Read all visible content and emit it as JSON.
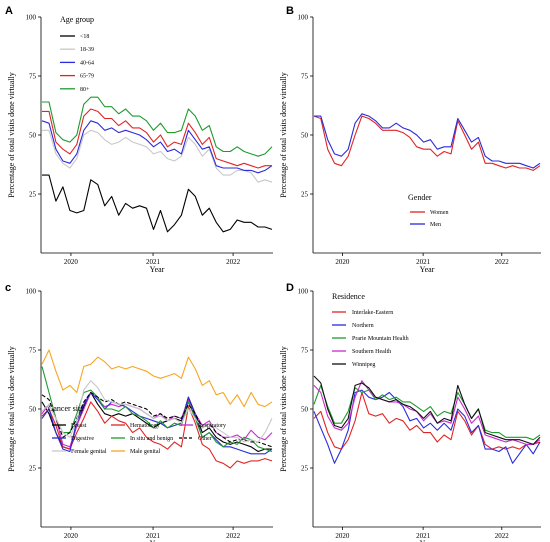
{
  "chart_data": [
    {
      "panel": "A",
      "type": "line",
      "xlabel": "Year",
      "ylabel": "Percentage of total visits done virtually",
      "xticks": [
        "2020",
        "2021",
        "2022"
      ],
      "ylim": [
        0,
        100
      ],
      "yticks": [
        25,
        50,
        75,
        100
      ],
      "legend_title": "Age group",
      "legend_position": "top-left",
      "series": [
        {
          "name": "<18",
          "color": "#000000",
          "values": [
            33,
            33,
            22,
            28,
            18,
            17,
            18,
            31,
            29,
            20,
            24,
            16,
            21,
            19,
            20,
            19,
            10,
            18,
            9,
            12,
            16,
            27,
            24,
            16,
            19,
            13,
            9,
            10,
            14,
            13,
            13,
            11,
            11,
            10
          ]
        },
        {
          "name": "18-39",
          "color": "#c8c8c8",
          "values": [
            52,
            52,
            42,
            38,
            36,
            40,
            50,
            52,
            51,
            48,
            46,
            47,
            49,
            47,
            46,
            45,
            42,
            43,
            40,
            39,
            41,
            49,
            46,
            41,
            44,
            36,
            33,
            33,
            35,
            35,
            34,
            30,
            31,
            30
          ]
        },
        {
          "name": "40-64",
          "color": "#2b2bdb",
          "values": [
            56,
            55,
            44,
            39,
            38,
            42,
            52,
            56,
            55,
            52,
            53,
            51,
            52,
            51,
            50,
            48,
            45,
            47,
            43,
            44,
            42,
            52,
            48,
            44,
            45,
            37,
            36,
            36,
            36,
            35,
            35,
            34,
            35,
            37
          ]
        },
        {
          "name": "65-79",
          "color": "#e02424",
          "values": [
            60,
            60,
            47,
            44,
            42,
            46,
            58,
            61,
            60,
            57,
            57,
            54,
            56,
            53,
            53,
            51,
            47,
            50,
            45,
            47,
            46,
            55,
            51,
            46,
            49,
            40,
            39,
            38,
            37,
            38,
            37,
            36,
            37,
            37
          ]
        },
        {
          "name": "80+",
          "color": "#1e9a2e",
          "values": [
            64,
            64,
            51,
            48,
            47,
            50,
            63,
            66,
            66,
            62,
            62,
            59,
            61,
            58,
            58,
            56,
            52,
            55,
            51,
            51,
            52,
            61,
            58,
            52,
            54,
            45,
            43,
            43,
            45,
            43,
            42,
            41,
            42,
            45
          ]
        }
      ]
    },
    {
      "panel": "B",
      "type": "line",
      "xlabel": "Year",
      "ylabel": "Percentage of total visits done virtually",
      "xticks": [
        "2020",
        "2021",
        "2022"
      ],
      "ylim": [
        0,
        100
      ],
      "yticks": [
        25,
        50,
        75,
        100
      ],
      "legend_title": "Gender",
      "legend_position": "bottom-right",
      "series": [
        {
          "name": "Women",
          "color": "#e02424",
          "values": [
            58,
            57,
            44,
            38,
            37,
            41,
            50,
            58,
            57,
            55,
            52,
            52,
            52,
            51,
            49,
            45,
            44,
            44,
            41,
            43,
            42,
            56,
            50,
            44,
            47,
            38,
            38,
            37,
            36,
            37,
            36,
            36,
            35,
            37
          ]
        },
        {
          "name": "Men",
          "color": "#2b2bdb",
          "values": [
            58,
            58,
            48,
            42,
            41,
            44,
            55,
            59,
            58,
            56,
            53,
            53,
            55,
            53,
            52,
            50,
            47,
            48,
            44,
            45,
            45,
            57,
            52,
            47,
            49,
            41,
            39,
            39,
            38,
            38,
            38,
            37,
            36,
            38
          ]
        }
      ]
    },
    {
      "panel": "c",
      "type": "line",
      "xlabel": "Year",
      "ylabel": "Percentage of total visits done virtually",
      "xticks": [
        "2020",
        "2021",
        "2022"
      ],
      "ylim": [
        0,
        100
      ],
      "yticks": [
        25,
        50,
        75,
        100
      ],
      "legend_title": "Cancer site",
      "legend_position": "bottom-left",
      "series": [
        {
          "name": "Breast",
          "color": "#000000",
          "values": [
            53,
            48,
            40,
            34,
            33,
            43,
            51,
            57,
            52,
            48,
            47,
            48,
            47,
            48,
            46,
            44,
            42,
            44,
            45,
            46,
            45,
            55,
            48,
            40,
            42,
            38,
            36,
            35,
            36,
            35,
            34,
            32,
            33,
            33
          ]
        },
        {
          "name": "Hematology",
          "color": "#e02424",
          "values": [
            47,
            50,
            43,
            34,
            33,
            40,
            46,
            53,
            49,
            44,
            47,
            45,
            44,
            40,
            42,
            38,
            36,
            35,
            33,
            36,
            34,
            51,
            44,
            35,
            33,
            28,
            27,
            25,
            28,
            27,
            28,
            28,
            29,
            28
          ]
        },
        {
          "name": "Respiratory",
          "color": "#c72bcf",
          "values": [
            48,
            52,
            46,
            35,
            34,
            43,
            50,
            57,
            54,
            51,
            52,
            51,
            52,
            51,
            50,
            48,
            46,
            48,
            45,
            47,
            46,
            54,
            48,
            43,
            45,
            40,
            38,
            38,
            39,
            37,
            41,
            38,
            37,
            40
          ]
        },
        {
          "name": "Digestive",
          "color": "#2b2bdb",
          "values": [
            46,
            50,
            40,
            33,
            32,
            45,
            52,
            57,
            54,
            50,
            53,
            52,
            51,
            49,
            47,
            46,
            45,
            44,
            42,
            43,
            44,
            55,
            47,
            38,
            40,
            37,
            34,
            34,
            33,
            32,
            31,
            31,
            31,
            33
          ]
        },
        {
          "name": "In situ and benign",
          "color": "#1e9a2e",
          "values": [
            68,
            57,
            46,
            40,
            40,
            48,
            57,
            58,
            55,
            50,
            50,
            49,
            51,
            48,
            47,
            45,
            42,
            45,
            42,
            44,
            43,
            53,
            46,
            38,
            40,
            36,
            34,
            36,
            35,
            38,
            37,
            34,
            33,
            32
          ]
        },
        {
          "name": "Other",
          "color": "#000000",
          "dashed": true,
          "values": [
            56,
            54,
            46,
            38,
            40,
            46,
            53,
            57,
            55,
            53,
            54,
            52,
            53,
            52,
            51,
            50,
            47,
            48,
            46,
            47,
            46,
            52,
            48,
            42,
            44,
            40,
            38,
            36,
            37,
            37,
            36,
            36,
            35,
            34
          ]
        },
        {
          "name": "Female genital",
          "color": "#c8c8c8",
          "values": [
            49,
            52,
            46,
            40,
            38,
            45,
            58,
            62,
            59,
            54,
            53,
            52,
            52,
            51,
            50,
            48,
            46,
            47,
            45,
            46,
            44,
            50,
            46,
            42,
            44,
            42,
            40,
            38,
            38,
            36,
            37,
            36,
            40,
            46
          ]
        },
        {
          "name": "Male genital",
          "color": "#f5a623",
          "values": [
            69,
            75,
            66,
            58,
            60,
            57,
            68,
            69,
            72,
            70,
            67,
            68,
            67,
            68,
            67,
            66,
            64,
            63,
            64,
            65,
            63,
            72,
            67,
            60,
            62,
            56,
            57,
            52,
            56,
            51,
            57,
            52,
            51,
            53
          ]
        }
      ]
    },
    {
      "panel": "D",
      "type": "line",
      "xlabel": "Year",
      "ylabel": "Percentage of total visits done virtually",
      "xticks": [
        "2020",
        "2021",
        "2022"
      ],
      "ylim": [
        0,
        100
      ],
      "yticks": [
        25,
        50,
        75,
        100
      ],
      "legend_title": "Residence",
      "legend_position": "top-left",
      "series": [
        {
          "name": "Interlake-Eastern",
          "color": "#e02424",
          "values": [
            46,
            49,
            40,
            34,
            33,
            37,
            45,
            57,
            48,
            47,
            48,
            44,
            46,
            45,
            41,
            43,
            40,
            40,
            36,
            39,
            37,
            49,
            45,
            39,
            43,
            35,
            33,
            34,
            33,
            34,
            33,
            35,
            35,
            36
          ]
        },
        {
          "name": "Northern",
          "color": "#2b2bdb",
          "values": [
            49,
            42,
            35,
            27,
            33,
            41,
            57,
            58,
            55,
            54,
            55,
            57,
            54,
            51,
            45,
            46,
            42,
            44,
            41,
            44,
            41,
            50,
            47,
            40,
            43,
            33,
            33,
            32,
            34,
            27,
            31,
            35,
            31,
            36
          ]
        },
        {
          "name": "Prarie Mountain Health",
          "color": "#1e9a2e",
          "values": [
            52,
            60,
            51,
            44,
            44,
            49,
            59,
            57,
            58,
            54,
            56,
            54,
            55,
            53,
            53,
            51,
            49,
            51,
            47,
            49,
            48,
            57,
            52,
            46,
            50,
            41,
            40,
            40,
            38,
            38,
            38,
            38,
            37,
            39
          ]
        },
        {
          "name": "Southern Health",
          "color": "#c72bcf",
          "values": [
            60,
            57,
            47,
            42,
            41,
            44,
            55,
            62,
            58,
            55,
            54,
            53,
            53,
            52,
            50,
            49,
            45,
            48,
            44,
            45,
            44,
            55,
            50,
            44,
            47,
            39,
            38,
            37,
            36,
            37,
            36,
            35,
            35,
            37
          ]
        },
        {
          "name": "Winnipeg",
          "color": "#111111",
          "values": [
            64,
            61,
            50,
            43,
            42,
            46,
            60,
            61,
            59,
            55,
            54,
            53,
            54,
            52,
            51,
            49,
            46,
            49,
            44,
            46,
            45,
            60,
            52,
            46,
            50,
            40,
            39,
            38,
            37,
            37,
            37,
            36,
            35,
            38
          ]
        }
      ]
    }
  ]
}
